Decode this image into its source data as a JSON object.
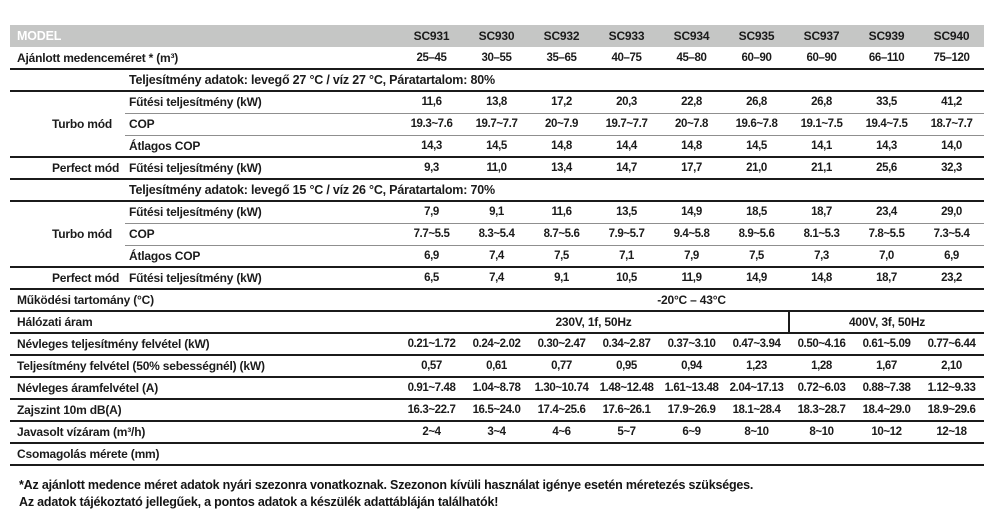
{
  "header": {
    "model_label": "MODEL",
    "models": [
      "SC931",
      "SC930",
      "SC932",
      "SC933",
      "SC934",
      "SC935",
      "SC937",
      "SC939",
      "SC940"
    ]
  },
  "rows": [
    {
      "type": "label2",
      "label": "Ajánlott medenceméret * (m³)",
      "values": [
        "25–45",
        "30–55",
        "35–65",
        "40–75",
        "45–80",
        "60–90",
        "60–90",
        "66–110",
        "75–120"
      ]
    },
    {
      "type": "section",
      "text": "Teljesítmény adatok: levegő 27 °C / víz 27 °C, Páratartalom: 80%"
    },
    {
      "type": "group",
      "group": "Turbo mód",
      "subrows": [
        {
          "label": "Fűtési teljesítmény (kW)",
          "values": [
            "11,6",
            "13,8",
            "17,2",
            "20,3",
            "22,8",
            "26,8",
            "26,8",
            "33,5",
            "41,2"
          ]
        },
        {
          "label": "COP",
          "values": [
            "19.3~7.6",
            "19.7~7.7",
            "20~7.9",
            "19.7~7.7",
            "20~7.8",
            "19.6~7.8",
            "19.1~7.5",
            "19.4~7.5",
            "18.7~7.7"
          ]
        },
        {
          "label": "Átlagos COP",
          "values": [
            "14,3",
            "14,5",
            "14,8",
            "14,4",
            "14,8",
            "14,5",
            "14,1",
            "14,3",
            "14,0"
          ]
        }
      ]
    },
    {
      "type": "pair",
      "group": "Perfect mód",
      "label": "Fűtési teljesítmény (kW)",
      "values": [
        "9,3",
        "11,0",
        "13,4",
        "14,7",
        "17,7",
        "21,0",
        "21,1",
        "25,6",
        "32,3"
      ]
    },
    {
      "type": "section",
      "text": "Teljesítmény adatok: levegő 15 °C / víz 26 °C, Páratartalom: 70%"
    },
    {
      "type": "group",
      "group": "Turbo mód",
      "subrows": [
        {
          "label": "Fűtési teljesítmény (kW)",
          "values": [
            "7,9",
            "9,1",
            "11,6",
            "13,5",
            "14,9",
            "18,5",
            "18,7",
            "23,4",
            "29,0"
          ]
        },
        {
          "label": "COP",
          "values": [
            "7.7~5.5",
            "8.3~5.4",
            "8.7~5.6",
            "7.9~5.7",
            "9.4~5.8",
            "8.9~5.6",
            "8.1~5.3",
            "7.8~5.5",
            "7.3~5.4"
          ]
        },
        {
          "label": "Átlagos COP",
          "values": [
            "6,9",
            "7,4",
            "7,5",
            "7,1",
            "7,9",
            "7,5",
            "7,3",
            "7,0",
            "6,9"
          ]
        }
      ]
    },
    {
      "type": "pair",
      "group": "Perfect mód",
      "label": "Fűtési teljesítmény (kW)",
      "values": [
        "6,5",
        "7,4",
        "9,1",
        "10,5",
        "11,9",
        "14,9",
        "14,8",
        "18,7",
        "23,2"
      ]
    },
    {
      "type": "span",
      "label": "Működési tartomány (°C)",
      "value": "-20°C – 43°C"
    },
    {
      "type": "split",
      "label": "Hálózati áram",
      "cells": [
        {
          "text": "230V, 1f, 50Hz",
          "span": 6
        },
        {
          "text": "400V, 3f, 50Hz",
          "span": 3
        }
      ]
    },
    {
      "type": "label2",
      "label": "Névleges teljesítmény felvétel (kW)",
      "values": [
        "0.21~1.72",
        "0.24~2.02",
        "0.30~2.47",
        "0.34~2.87",
        "0.37~3.10",
        "0.47~3.94",
        "0.50~4.16",
        "0.61~5.09",
        "0.77~6.44"
      ]
    },
    {
      "type": "label2",
      "label": "Teljesítmény felvétel (50% sebességnél) (kW)",
      "values": [
        "0,57",
        "0,61",
        "0,77",
        "0,95",
        "0,94",
        "1,23",
        "1,28",
        "1,67",
        "2,10"
      ]
    },
    {
      "type": "label2",
      "label": "Névleges áramfelvétel (A)",
      "values": [
        "0.91~7.48",
        "1.04~8.78",
        "1.30~10.74",
        "1.48~12.48",
        "1.61~13.48",
        "2.04~17.13",
        "0.72~6.03",
        "0.88~7.38",
        "1.12~9.33"
      ]
    },
    {
      "type": "label2",
      "label": "Zajszint 10m dB(A)",
      "values": [
        "16.3~22.7",
        "16.5~24.0",
        "17.4~25.6",
        "17.6~26.1",
        "17.9~26.9",
        "18.1~28.4",
        "18.3~28.7",
        "18.4~29.0",
        "18.9~29.6"
      ]
    },
    {
      "type": "label2",
      "label": "Javasolt vízáram (m³/h)",
      "values": [
        "2~4",
        "3~4",
        "4~6",
        "5~7",
        "6~9",
        "8~10",
        "8~10",
        "10~12",
        "12~18"
      ]
    },
    {
      "type": "label2",
      "label": "Csomagolás mérete (mm)",
      "values": [
        "",
        "",
        "",
        "",
        "",
        "",
        "",
        "",
        ""
      ]
    }
  ],
  "footnotes": [
    "*Az ajánlott medence méret adatok nyári szezonra vonatkoznak. Szezonon kívüli használat igénye esetén méretezés szükséges.",
    "Az adatok tájékoztató jellegűek, a pontos adatok a készülék adattábláján találhatók!"
  ],
  "colors": {
    "header_bg": "#c5c6c5",
    "header_text": "#ffffff",
    "text": "#1b1b1b",
    "line_major": "#1b1b1b",
    "line_minor": "#8f8f8f"
  }
}
